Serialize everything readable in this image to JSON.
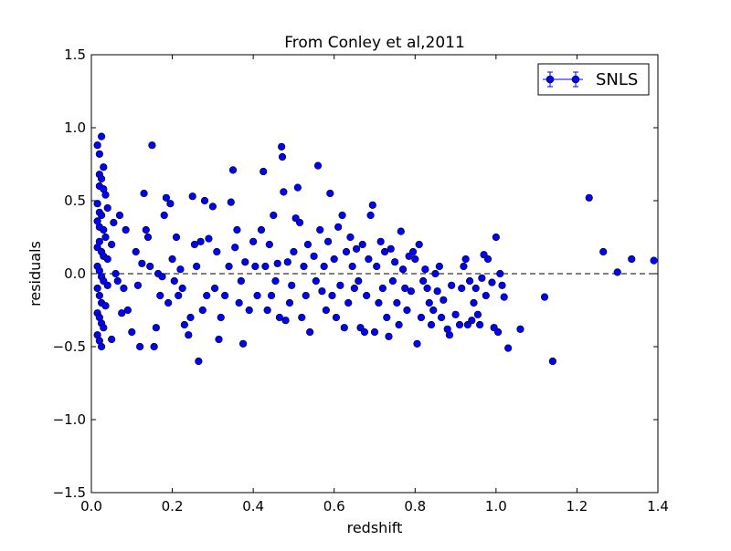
{
  "chart_data": {
    "type": "scatter",
    "title": "From Conley et al,2011",
    "xlabel": "redshift",
    "ylabel": "residuals",
    "xlim": [
      0.0,
      1.4
    ],
    "ylim": [
      -1.5,
      1.5
    ],
    "x_ticks": [
      0.0,
      0.2,
      0.4,
      0.6,
      0.8,
      1.0,
      1.2,
      1.4
    ],
    "y_ticks": [
      -1.5,
      -1.0,
      -0.5,
      0.0,
      0.5,
      1.0,
      1.5
    ],
    "x_tick_labels": [
      "0.0",
      "0.2",
      "0.4",
      "0.6",
      "0.8",
      "1.0",
      "1.2",
      "1.4"
    ],
    "y_tick_labels": [
      "−1.5",
      "−1.0",
      "−0.5",
      "0.0",
      "0.5",
      "1.0",
      "1.5"
    ],
    "grid": false,
    "reference_line": {
      "y": 0.0,
      "style": "dashed",
      "color": "#000000"
    },
    "legend": {
      "position": "top-right",
      "entries": [
        "SNLS"
      ]
    },
    "series": [
      {
        "name": "SNLS",
        "color": "#0000ff",
        "marker": "circle",
        "points": [
          [
            0.015,
            0.88
          ],
          [
            0.025,
            0.94
          ],
          [
            0.02,
            0.82
          ],
          [
            0.03,
            0.73
          ],
          [
            0.02,
            0.68
          ],
          [
            0.025,
            0.65
          ],
          [
            0.02,
            0.6
          ],
          [
            0.03,
            0.58
          ],
          [
            0.035,
            0.54
          ],
          [
            0.015,
            0.48
          ],
          [
            0.02,
            0.42
          ],
          [
            0.025,
            0.4
          ],
          [
            0.04,
            0.45
          ],
          [
            0.015,
            0.36
          ],
          [
            0.02,
            0.32
          ],
          [
            0.03,
            0.3
          ],
          [
            0.035,
            0.25
          ],
          [
            0.02,
            0.22
          ],
          [
            0.015,
            0.18
          ],
          [
            0.025,
            0.15
          ],
          [
            0.03,
            0.12
          ],
          [
            0.04,
            0.1
          ],
          [
            0.015,
            0.05
          ],
          [
            0.02,
            0.02
          ],
          [
            0.025,
            -0.02
          ],
          [
            0.03,
            -0.05
          ],
          [
            0.04,
            -0.08
          ],
          [
            0.015,
            -0.1
          ],
          [
            0.02,
            -0.15
          ],
          [
            0.025,
            -0.2
          ],
          [
            0.035,
            -0.22
          ],
          [
            0.015,
            -0.27
          ],
          [
            0.02,
            -0.3
          ],
          [
            0.025,
            -0.34
          ],
          [
            0.03,
            -0.37
          ],
          [
            0.015,
            -0.42
          ],
          [
            0.02,
            -0.46
          ],
          [
            0.025,
            -0.5
          ],
          [
            0.05,
            -0.45
          ],
          [
            0.05,
            0.2
          ],
          [
            0.055,
            0.35
          ],
          [
            0.06,
            0.0
          ],
          [
            0.065,
            -0.05
          ],
          [
            0.07,
            0.4
          ],
          [
            0.075,
            -0.27
          ],
          [
            0.08,
            -0.1
          ],
          [
            0.085,
            0.3
          ],
          [
            0.09,
            -0.25
          ],
          [
            0.1,
            -0.4
          ],
          [
            0.11,
            0.15
          ],
          [
            0.115,
            -0.08
          ],
          [
            0.12,
            -0.5
          ],
          [
            0.125,
            0.07
          ],
          [
            0.13,
            0.55
          ],
          [
            0.135,
            0.3
          ],
          [
            0.14,
            0.25
          ],
          [
            0.145,
            0.05
          ],
          [
            0.15,
            0.88
          ],
          [
            0.155,
            -0.5
          ],
          [
            0.16,
            -0.37
          ],
          [
            0.165,
            0.0
          ],
          [
            0.17,
            -0.15
          ],
          [
            0.175,
            -0.02
          ],
          [
            0.18,
            0.4
          ],
          [
            0.185,
            0.52
          ],
          [
            0.19,
            -0.2
          ],
          [
            0.195,
            0.48
          ],
          [
            0.2,
            0.1
          ],
          [
            0.205,
            -0.05
          ],
          [
            0.21,
            0.25
          ],
          [
            0.215,
            -0.15
          ],
          [
            0.22,
            0.03
          ],
          [
            0.225,
            -0.1
          ],
          [
            0.23,
            -0.35
          ],
          [
            0.24,
            -0.42
          ],
          [
            0.245,
            -0.3
          ],
          [
            0.25,
            0.53
          ],
          [
            0.255,
            0.2
          ],
          [
            0.26,
            0.05
          ],
          [
            0.265,
            -0.6
          ],
          [
            0.27,
            0.22
          ],
          [
            0.275,
            -0.25
          ],
          [
            0.28,
            0.5
          ],
          [
            0.285,
            -0.15
          ],
          [
            0.29,
            0.24
          ],
          [
            0.3,
            0.46
          ],
          [
            0.305,
            -0.1
          ],
          [
            0.31,
            0.15
          ],
          [
            0.315,
            -0.45
          ],
          [
            0.32,
            -0.3
          ],
          [
            0.33,
            -0.15
          ],
          [
            0.34,
            0.05
          ],
          [
            0.345,
            0.49
          ],
          [
            0.35,
            0.71
          ],
          [
            0.355,
            0.18
          ],
          [
            0.36,
            0.3
          ],
          [
            0.365,
            -0.2
          ],
          [
            0.37,
            -0.05
          ],
          [
            0.375,
            -0.48
          ],
          [
            0.38,
            0.08
          ],
          [
            0.39,
            -0.25
          ],
          [
            0.4,
            0.22
          ],
          [
            0.405,
            0.05
          ],
          [
            0.41,
            -0.15
          ],
          [
            0.42,
            0.3
          ],
          [
            0.425,
            0.7
          ],
          [
            0.43,
            0.05
          ],
          [
            0.435,
            -0.25
          ],
          [
            0.44,
            0.2
          ],
          [
            0.445,
            -0.15
          ],
          [
            0.45,
            0.4
          ],
          [
            0.455,
            -0.05
          ],
          [
            0.46,
            0.07
          ],
          [
            0.465,
            -0.3
          ],
          [
            0.47,
            0.87
          ],
          [
            0.472,
            0.8
          ],
          [
            0.475,
            0.56
          ],
          [
            0.48,
            -0.32
          ],
          [
            0.485,
            0.08
          ],
          [
            0.49,
            -0.2
          ],
          [
            0.495,
            -0.08
          ],
          [
            0.5,
            0.15
          ],
          [
            0.505,
            0.38
          ],
          [
            0.51,
            0.59
          ],
          [
            0.515,
            0.35
          ],
          [
            0.52,
            -0.3
          ],
          [
            0.525,
            0.05
          ],
          [
            0.53,
            -0.15
          ],
          [
            0.535,
            0.2
          ],
          [
            0.54,
            -0.4
          ],
          [
            0.55,
            0.12
          ],
          [
            0.555,
            -0.05
          ],
          [
            0.56,
            0.74
          ],
          [
            0.565,
            0.3
          ],
          [
            0.57,
            -0.12
          ],
          [
            0.575,
            0.05
          ],
          [
            0.58,
            -0.25
          ],
          [
            0.585,
            0.22
          ],
          [
            0.59,
            0.55
          ],
          [
            0.595,
            -0.15
          ],
          [
            0.6,
            0.1
          ],
          [
            0.605,
            -0.3
          ],
          [
            0.61,
            0.32
          ],
          [
            0.615,
            -0.08
          ],
          [
            0.62,
            0.4
          ],
          [
            0.625,
            -0.37
          ],
          [
            0.63,
            0.15
          ],
          [
            0.635,
            -0.2
          ],
          [
            0.64,
            0.25
          ],
          [
            0.645,
            0.05
          ],
          [
            0.65,
            -0.1
          ],
          [
            0.655,
            0.17
          ],
          [
            0.66,
            -0.05
          ],
          [
            0.665,
            -0.37
          ],
          [
            0.67,
            0.2
          ],
          [
            0.675,
            -0.4
          ],
          [
            0.68,
            -0.15
          ],
          [
            0.685,
            0.1
          ],
          [
            0.69,
            0.4
          ],
          [
            0.695,
            0.47
          ],
          [
            0.7,
            -0.4
          ],
          [
            0.705,
            0.05
          ],
          [
            0.71,
            -0.2
          ],
          [
            0.715,
            0.22
          ],
          [
            0.72,
            -0.1
          ],
          [
            0.725,
            0.15
          ],
          [
            0.73,
            -0.3
          ],
          [
            0.735,
            -0.43
          ],
          [
            0.74,
            0.17
          ],
          [
            0.745,
            -0.05
          ],
          [
            0.75,
            0.08
          ],
          [
            0.755,
            -0.2
          ],
          [
            0.76,
            -0.35
          ],
          [
            0.765,
            0.29
          ],
          [
            0.77,
            0.03
          ],
          [
            0.775,
            -0.1
          ],
          [
            0.78,
            -0.25
          ],
          [
            0.785,
            0.12
          ],
          [
            0.79,
            -0.12
          ],
          [
            0.795,
            0.15
          ],
          [
            0.8,
            0.1
          ],
          [
            0.805,
            -0.48
          ],
          [
            0.81,
            0.2
          ],
          [
            0.815,
            -0.3
          ],
          [
            0.82,
            -0.05
          ],
          [
            0.825,
            0.03
          ],
          [
            0.83,
            -0.1
          ],
          [
            0.835,
            -0.2
          ],
          [
            0.84,
            -0.35
          ],
          [
            0.845,
            -0.25
          ],
          [
            0.85,
            0.0
          ],
          [
            0.855,
            -0.12
          ],
          [
            0.86,
            0.05
          ],
          [
            0.865,
            -0.3
          ],
          [
            0.87,
            -0.18
          ],
          [
            0.88,
            -0.38
          ],
          [
            0.885,
            -0.42
          ],
          [
            0.89,
            -0.08
          ],
          [
            0.9,
            -0.28
          ],
          [
            0.91,
            -0.35
          ],
          [
            0.915,
            -0.1
          ],
          [
            0.92,
            0.05
          ],
          [
            0.925,
            0.1
          ],
          [
            0.93,
            -0.35
          ],
          [
            0.935,
            -0.05
          ],
          [
            0.94,
            -0.32
          ],
          [
            0.945,
            -0.2
          ],
          [
            0.95,
            -0.1
          ],
          [
            0.955,
            -0.28
          ],
          [
            0.96,
            -0.35
          ],
          [
            0.965,
            -0.03
          ],
          [
            0.97,
            0.13
          ],
          [
            0.975,
            -0.15
          ],
          [
            0.98,
            0.1
          ],
          [
            0.99,
            -0.06
          ],
          [
            0.995,
            -0.37
          ],
          [
            1.0,
            0.25
          ],
          [
            1.005,
            -0.4
          ],
          [
            1.01,
            0.0
          ],
          [
            1.015,
            -0.08
          ],
          [
            1.02,
            -0.16
          ],
          [
            1.03,
            -0.51
          ],
          [
            1.06,
            -0.38
          ],
          [
            1.12,
            -0.16
          ],
          [
            1.14,
            -0.6
          ],
          [
            1.23,
            0.52
          ],
          [
            1.265,
            0.15
          ],
          [
            1.3,
            0.01
          ],
          [
            1.335,
            0.1
          ],
          [
            1.39,
            0.09
          ]
        ]
      }
    ]
  }
}
